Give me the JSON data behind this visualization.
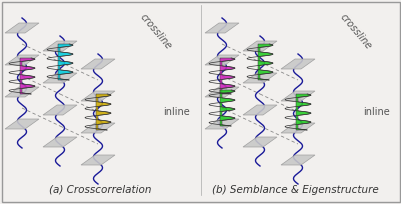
{
  "background_color": "#f2f0ee",
  "border_color": "#999999",
  "title_a": "(a) Crosscorrelation",
  "title_b": "(b) Semblance & Eigenstructure",
  "label_crossline": "crossline",
  "label_inline": "inline",
  "fig_width": 4.02,
  "fig_height": 2.04,
  "dpi": 100,
  "trace_color": "#1a1a99",
  "panel_a_blob_colors": [
    "#00ccdd",
    "#cc22bb",
    "#ccaa00"
  ],
  "panel_b_blob_colors": [
    "#22cc22",
    "#cc22bb",
    "#22cc22",
    "#22cc22"
  ],
  "gray_color": "#c8c8c8",
  "gray_edge": "#999999"
}
